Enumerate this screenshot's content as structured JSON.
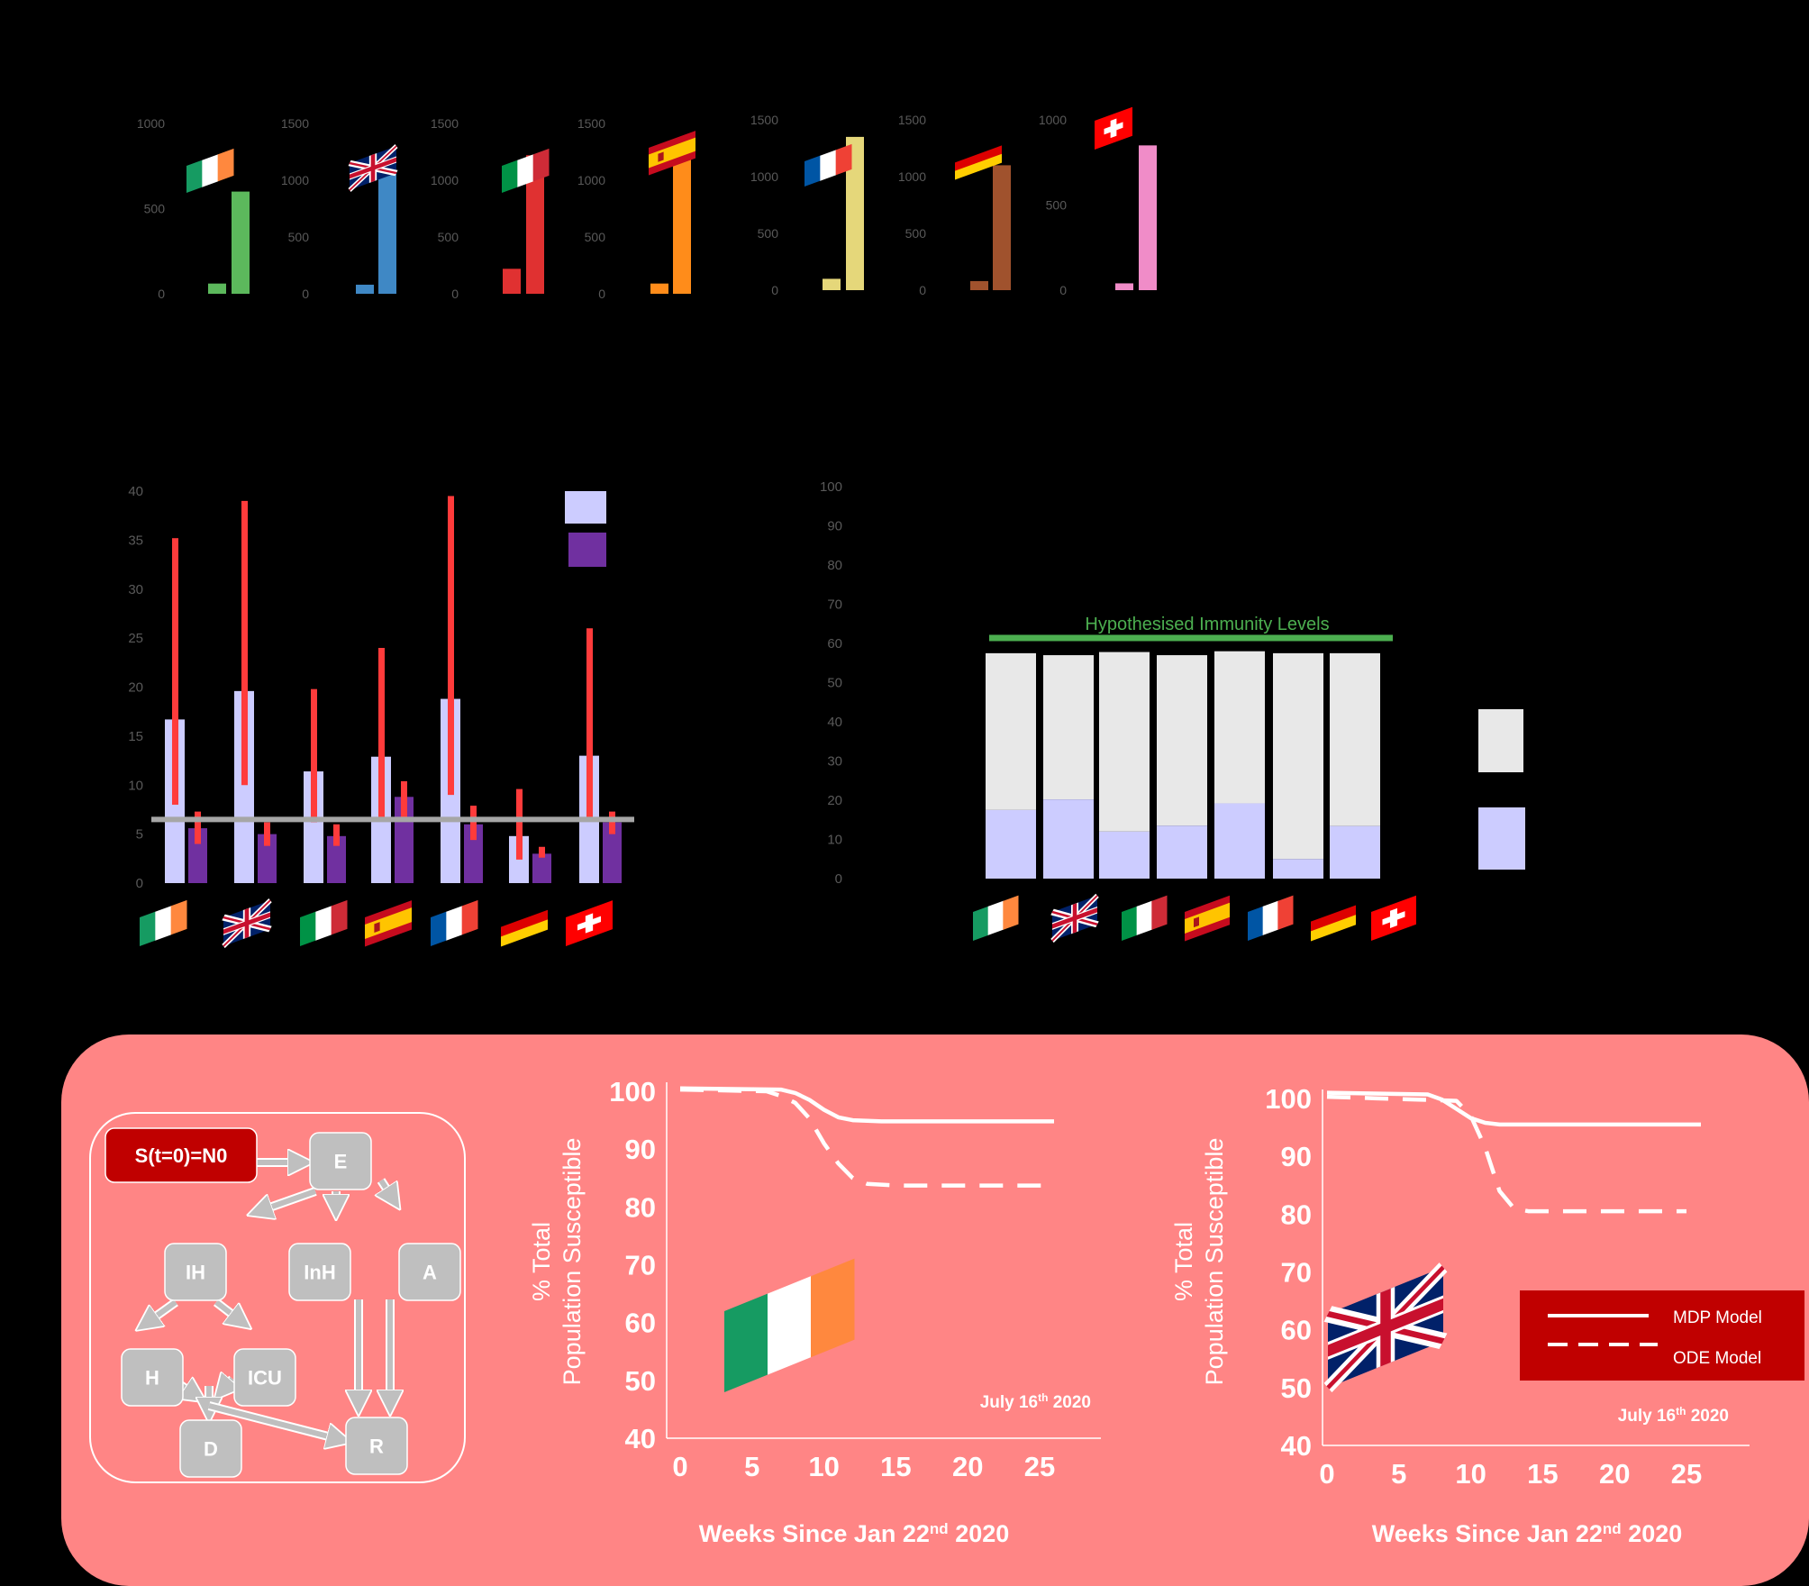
{
  "colors": {
    "background": "#000000",
    "axis": "#000000",
    "tick_label": "#595959",
    "error_bar": "#ff3b3b",
    "threshold_line": "#a6a6a6",
    "light_bar": "#ccccff",
    "dark_bar": "#7030a0",
    "immune_bar": "#ccccff",
    "remaining_bar": "#e8e8e8",
    "immunity_line": "#4caf50",
    "panel_bg": "#ff8585",
    "node": "#bfbfbf",
    "start_node": "#c00000",
    "legend_bg": "#c00000",
    "curve": "#ffffff"
  },
  "flags": {
    "ireland-flag-icon": [
      "#169b62",
      "#ffffff",
      "#ff883e"
    ],
    "uk-flag-icon": [
      "#012169",
      "#ffffff",
      "#c8102e"
    ],
    "italy-flag-icon": [
      "#009246",
      "#ffffff",
      "#ce2b37"
    ],
    "spain-flag-icon": [
      "#c60b1e",
      "#ffc400",
      "#c60b1e"
    ],
    "france-flag-icon": [
      "#0055a4",
      "#ffffff",
      "#ef4135"
    ],
    "germany-flag-icon": [
      "#000000",
      "#dd0000",
      "#ffce00"
    ],
    "switzerland-flag-icon": [
      "#ff0000",
      "#ffffff"
    ]
  },
  "chart_data": [
    {
      "type": "bar",
      "panel": "small-multiples",
      "countries": [
        {
          "flag": "ireland-flag-icon",
          "color": "#5cb85c",
          "values": [
            0,
            60,
            600
          ],
          "ylim": [
            0,
            1000
          ],
          "yticks": [
            "0",
            "500",
            "1000"
          ]
        },
        {
          "flag": "uk-flag-icon",
          "color": "#3f88c5",
          "values": [
            0,
            80,
            1120
          ],
          "ylim": [
            0,
            1500
          ],
          "yticks": [
            "0",
            "500",
            "1000",
            "1500"
          ]
        },
        {
          "flag": "italy-flag-icon",
          "color": "#e03131",
          "values": [
            0,
            220,
            1220
          ],
          "ylim": [
            0,
            1500
          ],
          "yticks": [
            "0",
            "500",
            "1000",
            "1500"
          ]
        },
        {
          "flag": "spain-flag-icon",
          "color": "#ff8c1a",
          "values": [
            0,
            90,
            1250
          ],
          "ylim": [
            0,
            1500
          ],
          "yticks": [
            "0",
            "500",
            "1000",
            "1500"
          ]
        },
        {
          "flag": "france-flag-icon",
          "color": "#e5d77a",
          "values": [
            0,
            100,
            1350
          ],
          "ylim": [
            0,
            1500
          ],
          "yticks": [
            "0",
            "500",
            "1000",
            "1500"
          ]
        },
        {
          "flag": "germany-flag-icon",
          "color": "#a0522d",
          "values": [
            0,
            80,
            1100
          ],
          "ylim": [
            0,
            1500
          ],
          "yticks": [
            "0",
            "500",
            "1000",
            "1500"
          ]
        },
        {
          "flag": "switzerland-flag-icon",
          "color": "#f08cc8",
          "values": [
            0,
            40,
            850
          ],
          "ylim": [
            0,
            1000
          ],
          "yticks": [
            "0",
            "500",
            "1000"
          ]
        }
      ]
    },
    {
      "type": "bar",
      "panel": "grouped-with-error-bars",
      "ylim": [
        0,
        40
      ],
      "yticks": [
        "0",
        "5",
        "10",
        "15",
        "20",
        "25",
        "30",
        "35",
        "40"
      ],
      "threshold": 6.5,
      "groups": [
        {
          "flag": "ireland-flag-icon",
          "light": 16.7,
          "light_err": [
            8,
            35.2
          ],
          "dark": 5.6,
          "dark_err": [
            4,
            7.3
          ]
        },
        {
          "flag": "uk-flag-icon",
          "light": 19.6,
          "light_err": [
            10,
            39
          ],
          "dark": 5,
          "dark_err": [
            3.8,
            6.2
          ]
        },
        {
          "flag": "italy-flag-icon",
          "light": 11.4,
          "light_err": [
            6.2,
            19.8
          ],
          "dark": 4.8,
          "dark_err": [
            3.8,
            6
          ]
        },
        {
          "flag": "spain-flag-icon",
          "light": 12.9,
          "light_err": [
            6.5,
            24
          ],
          "dark": 8.8,
          "dark_err": [
            6.6,
            10.4
          ]
        },
        {
          "flag": "france-flag-icon",
          "light": 18.8,
          "light_err": [
            9,
            39.5
          ],
          "dark": 6,
          "dark_err": [
            4.4,
            7.9
          ]
        },
        {
          "flag": "germany-flag-icon",
          "light": 4.8,
          "light_err": [
            2.4,
            9.6
          ],
          "dark": 3,
          "dark_err": [
            2.6,
            3.7
          ]
        },
        {
          "flag": "switzerland-flag-icon",
          "light": 13,
          "light_err": [
            6.5,
            26
          ],
          "dark": 6.2,
          "dark_err": [
            5,
            7.3
          ]
        }
      ]
    },
    {
      "type": "bar",
      "panel": "stacked",
      "ylim": [
        0,
        100
      ],
      "yticks": [
        "0",
        "10",
        "20",
        "30",
        "40",
        "50",
        "60",
        "70",
        "80",
        "90",
        "100"
      ],
      "annotation": "Hypothesised Immunity Levels",
      "immunity_level": 61.5,
      "bars": [
        {
          "flag": "ireland-flag-icon",
          "immune": 17.5,
          "total": 57.5
        },
        {
          "flag": "uk-flag-icon",
          "immune": 20.2,
          "total": 57
        },
        {
          "flag": "italy-flag-icon",
          "immune": 12,
          "total": 57.8
        },
        {
          "flag": "spain-flag-icon",
          "immune": 13.5,
          "total": 57
        },
        {
          "flag": "france-flag-icon",
          "immune": 19.2,
          "total": 58
        },
        {
          "flag": "germany-flag-icon",
          "immune": 5,
          "total": 57.5
        },
        {
          "flag": "switzerland-flag-icon",
          "immune": 13.4,
          "total": 57.5
        }
      ]
    },
    {
      "type": "line",
      "panel": "ireland-susceptible",
      "flag": "ireland-flag-icon",
      "xlabel": "Weeks Since Jan 22",
      "xlabel_sup": "nd",
      "xlabel_tail": " 2020",
      "ylabel_line1": "% Total",
      "ylabel_line2": "Population Susceptible",
      "note": "July 16",
      "note_sup": "th",
      "note_tail": " 2020",
      "xlim": [
        0,
        25
      ],
      "ylim": [
        40,
        100
      ],
      "xticks": [
        "0",
        "5",
        "10",
        "15",
        "20",
        "25"
      ],
      "yticks": [
        "40",
        "50",
        "60",
        "70",
        "80",
        "90",
        "100"
      ],
      "series": [
        {
          "name": "MDP Model",
          "x": [
            0,
            7,
            8,
            9,
            10,
            11,
            12,
            14,
            26
          ],
          "y": [
            100.5,
            100.3,
            99.7,
            98.5,
            96.8,
            95.5,
            95,
            94.8,
            94.8
          ]
        },
        {
          "name": "ODE Model",
          "x": [
            0,
            6,
            7,
            8,
            9,
            10,
            11,
            12,
            13,
            15,
            26
          ],
          "y": [
            100.3,
            100,
            99.2,
            98,
            95.3,
            91,
            87.5,
            85,
            84,
            83.7,
            83.7
          ]
        }
      ]
    },
    {
      "type": "line",
      "panel": "uk-susceptible",
      "flag": "uk-flag-icon",
      "xlabel": "Weeks Since Jan 22",
      "xlabel_sup": "nd",
      "xlabel_tail": " 2020",
      "ylabel_line1": "% Total",
      "ylabel_line2": "Population Susceptible",
      "note": "July 16",
      "note_sup": "th",
      "note_tail": " 2020",
      "xlim": [
        0,
        25
      ],
      "ylim": [
        40,
        100
      ],
      "xticks": [
        "0",
        "5",
        "10",
        "15",
        "20",
        "25"
      ],
      "yticks": [
        "40",
        "50",
        "60",
        "70",
        "80",
        "90",
        "100"
      ],
      "legend_placement": "right",
      "series": [
        {
          "name": "MDP Model",
          "x": [
            0,
            7,
            8,
            9,
            10,
            11,
            12,
            26
          ],
          "y": [
            101,
            100.7,
            99.8,
            98.2,
            96.6,
            95.8,
            95.5,
            95.5
          ]
        },
        {
          "name": "ODE Model",
          "x": [
            0,
            9,
            10,
            11,
            12,
            13,
            14,
            25
          ],
          "y": [
            100.3,
            99.6,
            97,
            91.5,
            84,
            81,
            80.5,
            80.5
          ]
        }
      ]
    }
  ],
  "diagram": {
    "nodes": [
      {
        "id": "S",
        "label": "S(t=0)=N0"
      },
      {
        "id": "E",
        "label": "E"
      },
      {
        "id": "IH",
        "label": "IH"
      },
      {
        "id": "InH",
        "label": "InH"
      },
      {
        "id": "A",
        "label": "A"
      },
      {
        "id": "H",
        "label": "H"
      },
      {
        "id": "ICU",
        "label": "ICU"
      },
      {
        "id": "D",
        "label": "D"
      },
      {
        "id": "R",
        "label": "R"
      }
    ]
  }
}
